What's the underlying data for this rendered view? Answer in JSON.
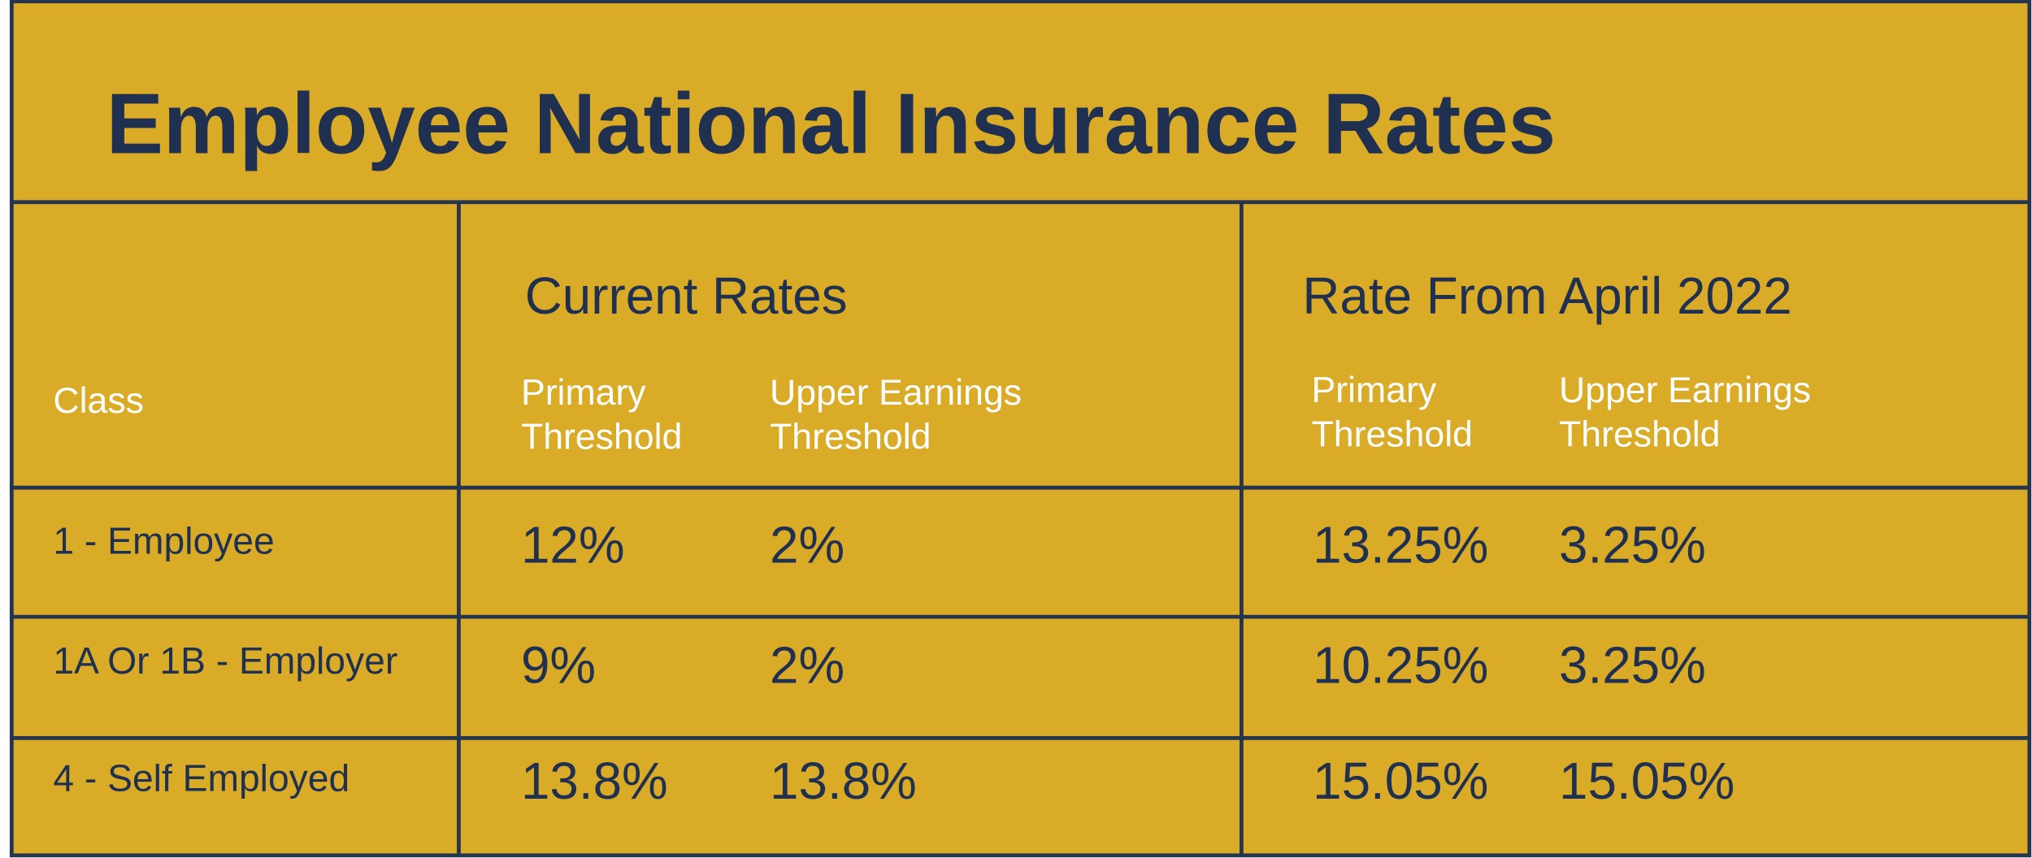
{
  "title": "Employee National Insurance Rates",
  "table": {
    "class_header": "Class",
    "groups": [
      {
        "label": "Current Rates",
        "columns": [
          [
            "Primary",
            "Threshold"
          ],
          [
            "Upper Earnings",
            "Threshold"
          ]
        ]
      },
      {
        "label": "Rate From April 2022",
        "columns": [
          [
            "Primary",
            "Threshold"
          ],
          [
            "Upper Earnings",
            "Threshold"
          ]
        ]
      }
    ],
    "rows": [
      [
        "1 - Employee",
        "12%",
        "2%",
        "13.25%",
        "3.25%"
      ],
      [
        "1A Or 1B - Employer",
        "9%",
        "2%",
        "10.25%",
        "3.25%"
      ],
      [
        "4 - Self Employed",
        "13.8%",
        "13.8%",
        "15.05%",
        "15.05%"
      ]
    ]
  }
}
